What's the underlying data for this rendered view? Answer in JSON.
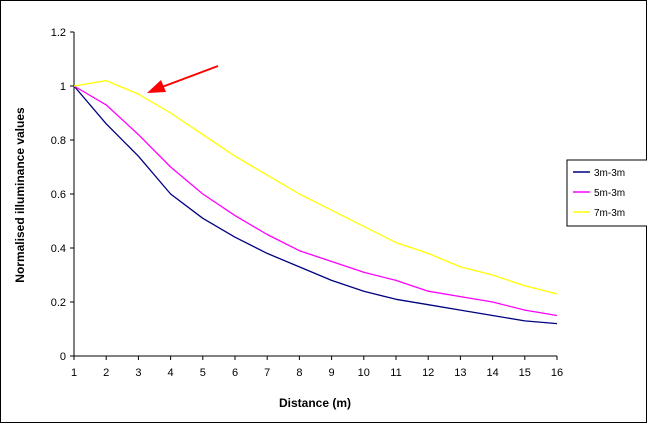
{
  "chart_data": {
    "type": "line",
    "xlabel": "Distance (m)",
    "ylabel": "Normalised illuminance values",
    "x": [
      1,
      2,
      3,
      4,
      5,
      6,
      7,
      8,
      9,
      10,
      11,
      12,
      13,
      14,
      15,
      16
    ],
    "x_ticks": [
      "1",
      "2",
      "3",
      "4",
      "5",
      "6",
      "7",
      "8",
      "9",
      "10",
      "11",
      "12",
      "13",
      "14",
      "15",
      "16"
    ],
    "ylim": [
      0,
      1.2
    ],
    "y_ticks": [
      "0",
      "0.2",
      "0.4",
      "0.6",
      "0.8",
      "1",
      "1.2"
    ],
    "grid": false,
    "legend_position": "right",
    "series": [
      {
        "name": "3m-3m",
        "color": "#000080",
        "values": [
          1.0,
          0.86,
          0.74,
          0.6,
          0.51,
          0.44,
          0.38,
          0.33,
          0.28,
          0.24,
          0.21,
          0.19,
          0.17,
          0.15,
          0.13,
          0.12
        ]
      },
      {
        "name": "5m-3m",
        "color": "#ff00ff",
        "values": [
          1.0,
          0.93,
          0.82,
          0.7,
          0.6,
          0.52,
          0.45,
          0.39,
          0.35,
          0.31,
          0.28,
          0.24,
          0.22,
          0.2,
          0.17,
          0.15
        ]
      },
      {
        "name": "7m-3m",
        "color": "#ffff00",
        "values": [
          1.0,
          1.02,
          0.97,
          0.9,
          0.82,
          0.74,
          0.67,
          0.6,
          0.54,
          0.48,
          0.42,
          0.38,
          0.33,
          0.3,
          0.26,
          0.23
        ]
      }
    ],
    "annotations": [
      {
        "type": "arrow",
        "color": "#ff0000",
        "points_to_series": "7m-3m",
        "points_to_x": 3
      }
    ]
  }
}
